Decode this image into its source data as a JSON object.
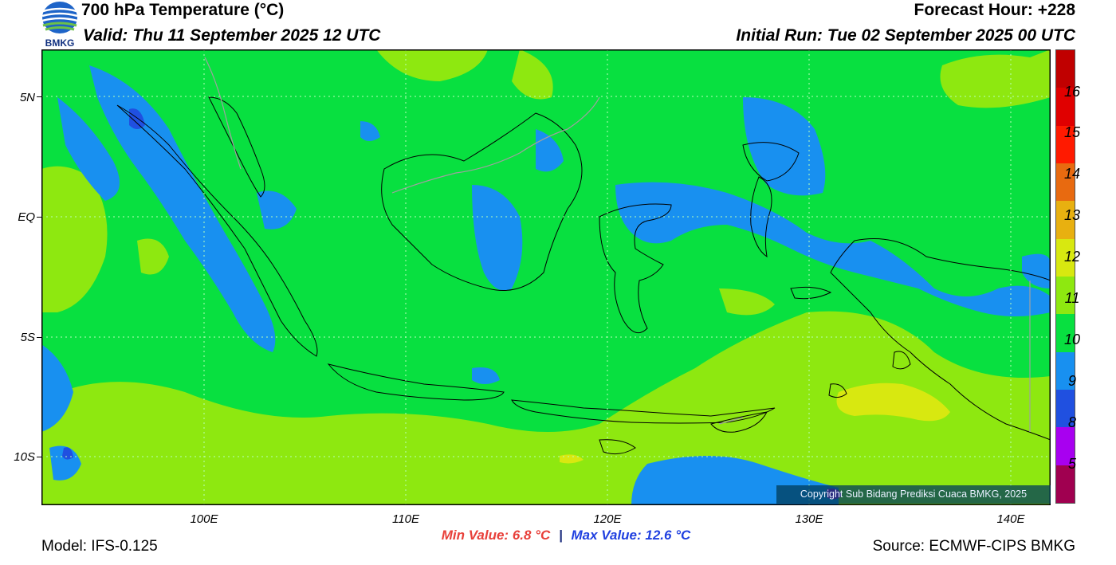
{
  "header": {
    "title": "700 hPa Temperature (°C)",
    "valid": "Valid: Thu 11 September 2025 12 UTC",
    "forecast_hour": "Forecast Hour: +228",
    "initial_run": "Initial Run: Tue 02 September 2025 00 UTC",
    "logo_text": "BMKG"
  },
  "axes": {
    "lat_ticks": [
      "5N",
      "EQ",
      "5S",
      "10S"
    ],
    "lon_ticks": [
      "100E",
      "110E",
      "120E",
      "130E",
      "140E"
    ]
  },
  "colorbar": {
    "labels": [
      "16",
      "15",
      "14",
      "13",
      "12",
      "11",
      "10",
      "9",
      "8",
      "5"
    ],
    "colors": [
      "#c00000",
      "#e00000",
      "#ff1a00",
      "#e86a10",
      "#e8b010",
      "#d8e810",
      "#8ee810",
      "#08e040",
      "#1890f0",
      "#2050e0",
      "#a800f0",
      "#a00050"
    ]
  },
  "stats": {
    "min": "Min Value: 6.8 °C",
    "separator": "|",
    "max": "Max Value: 12.6 °C"
  },
  "footer": {
    "model": "Model: IFS-0.125",
    "source": "Source: ECMWF-CIPS BMKG",
    "copyright": "Copyright Sub Bidang Prediksi Cuaca BMKG, 2025"
  },
  "map": {
    "variable": "700 hPa temperature",
    "dominant_range": "10-11",
    "colors": {
      "c9_10": "#1890f0",
      "c10_11": "#08e040",
      "c11_12": "#8ee810",
      "c12_13": "#d8e810",
      "c8_9": "#2050e0",
      "c5_8": "#a800f0"
    }
  }
}
